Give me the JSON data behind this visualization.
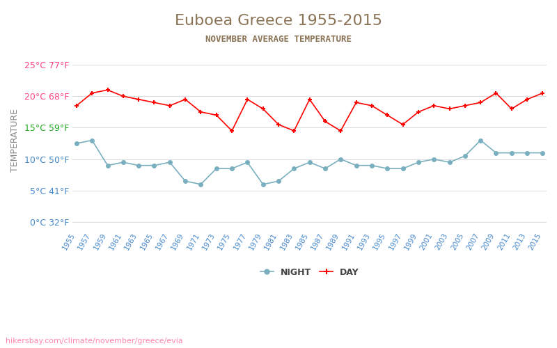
{
  "title": "Euboea Greece 1955-2015",
  "subtitle": "NOVEMBER AVERAGE TEMPERATURE",
  "xlabel": "",
  "ylabel": "TEMPERATURE",
  "years": [
    1955,
    1957,
    1959,
    1961,
    1963,
    1965,
    1967,
    1969,
    1971,
    1973,
    1975,
    1977,
    1979,
    1981,
    1983,
    1985,
    1987,
    1989,
    1991,
    1993,
    1995,
    1997,
    1999,
    2001,
    2003,
    2005,
    2007,
    2009,
    2011,
    2013,
    2015
  ],
  "day_temps": [
    18.5,
    20.5,
    21.0,
    20.0,
    19.5,
    19.0,
    18.5,
    19.5,
    17.5,
    17.0,
    14.5,
    19.5,
    18.0,
    15.5,
    14.5,
    19.5,
    16.0,
    14.5,
    19.0,
    18.5,
    17.0,
    15.5,
    17.5,
    18.5,
    18.0,
    18.5,
    19.0,
    20.5,
    18.0,
    19.5,
    20.5
  ],
  "night_temps": [
    12.5,
    13.0,
    9.0,
    9.5,
    9.0,
    9.0,
    9.5,
    6.5,
    6.0,
    8.5,
    8.5,
    9.5,
    6.0,
    6.5,
    8.5,
    9.5,
    8.5,
    10.0,
    9.0,
    9.0,
    8.5,
    8.5,
    9.5,
    10.0,
    9.5,
    10.5,
    13.0,
    11.0,
    11.0,
    11.0,
    11.0
  ],
  "day_color": "#ff0000",
  "night_color": "#7aafc0",
  "day_marker": "+",
  "night_marker": "o",
  "yticks_celsius": [
    0,
    5,
    10,
    15,
    20,
    25
  ],
  "yticks_fahrenheit": [
    32,
    41,
    50,
    59,
    68,
    77
  ],
  "ytick_colors": [
    "#4488cc",
    "#4488cc",
    "#4488cc",
    "#22aa22",
    "#ff4488",
    "#ff4488"
  ],
  "ylim": [
    -1,
    27
  ],
  "background_color": "#ffffff",
  "title_color": "#8b7355",
  "subtitle_color": "#8b7355",
  "grid_color": "#dddddd",
  "ylabel_color": "#888888",
  "xtick_color": "#4488cc",
  "watermark": "hikersbay.com/climate/november/greece/evia",
  "watermark_color": "#ff88aa"
}
